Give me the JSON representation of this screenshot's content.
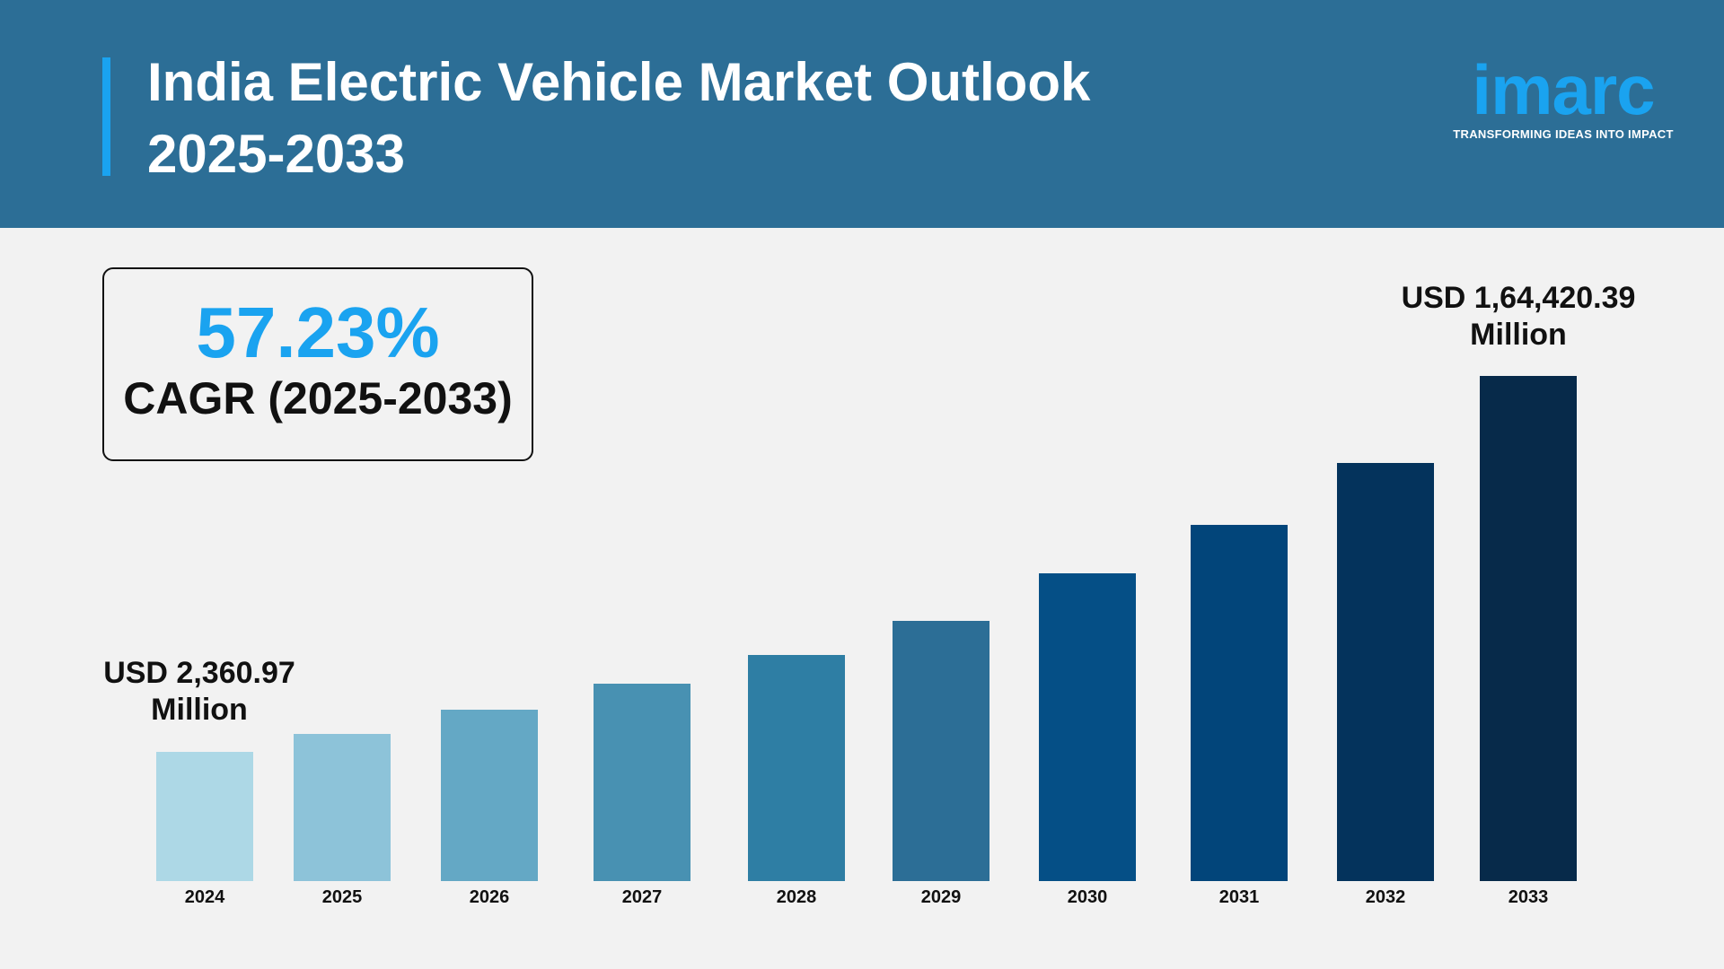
{
  "header": {
    "title_line1": "India Electric Vehicle Market Outlook",
    "title_line2": "2025-2033",
    "header_color": "#2c6e96",
    "accent_color": "#1aa3f0"
  },
  "logo": {
    "wordmark": "imarc",
    "tagline": "TRANSFORMING IDEAS INTO IMPACT"
  },
  "cagr": {
    "value": "57.23%",
    "label": "CAGR (2025-2033)"
  },
  "chart_data": {
    "type": "bar",
    "title": "India Electric Vehicle Market Outlook 2025-2033",
    "categories": [
      "2024",
      "2025",
      "2026",
      "2027",
      "2028",
      "2029",
      "2030",
      "2031",
      "2032",
      "2033"
    ],
    "values": [
      2360.97,
      null,
      null,
      null,
      null,
      null,
      null,
      null,
      null,
      164420.39
    ],
    "unit": "USD Million",
    "annotations": {
      "start": {
        "line1": "USD 2,360.97",
        "line2": "Million"
      },
      "end": {
        "line1": "USD 1,64,420.39",
        "line2": "Million"
      }
    },
    "colors": [
      "#add8e6",
      "#8dc3d9",
      "#64a8c5",
      "#4891b2",
      "#2e7ea4",
      "#2c6e96",
      "#054f86",
      "#02457a",
      "#04335c",
      "#072a4a"
    ],
    "grid": false,
    "axes_visible": false
  }
}
